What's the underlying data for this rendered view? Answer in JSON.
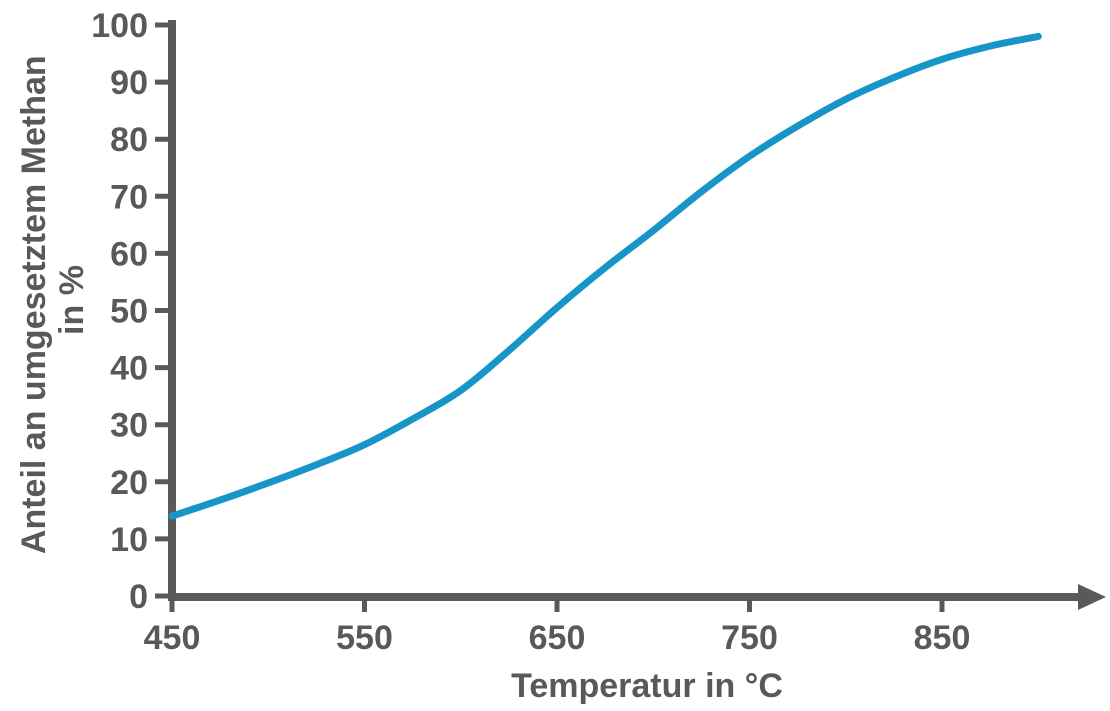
{
  "chart_data": {
    "type": "line",
    "title": "",
    "xlabel": "Temperatur in °C",
    "ylabel": "Anteil an umgesetztem Methan in %",
    "ylabel_lines": [
      "Anteil an umgesetztem Methan",
      "in %"
    ],
    "series": [
      {
        "name": "Anteil an umgesetztem Methan",
        "x": [
          450,
          475,
          500,
          525,
          550,
          575,
          600,
          625,
          650,
          675,
          700,
          725,
          750,
          775,
          800,
          825,
          850,
          875,
          900
        ],
        "values": [
          14,
          16.8,
          19.8,
          23,
          26.5,
          31,
          36,
          43,
          50.5,
          57.5,
          64,
          70.8,
          77,
          82.3,
          87,
          90.8,
          94,
          96.3,
          98
        ]
      }
    ],
    "xlim": [
      450,
      930
    ],
    "ylim": [
      0,
      100
    ],
    "x_ticks": [
      450,
      550,
      650,
      750,
      850
    ],
    "y_ticks": [
      0,
      10,
      20,
      30,
      40,
      50,
      60,
      70,
      80,
      90,
      100
    ],
    "grid": false,
    "legend": "none",
    "line_color": "#1795c8",
    "axis_color": "#59595b"
  }
}
